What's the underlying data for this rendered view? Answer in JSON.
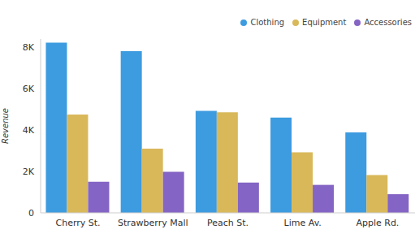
{
  "chart_data": {
    "type": "bar",
    "y_label": "Revenue",
    "categories": [
      "Cherry St.",
      "Strawberry Mall",
      "Peach St.",
      "Lime Av.",
      "Apple Rd."
    ],
    "series": [
      {
        "name": "Clothing",
        "color": "#3d9be0",
        "values": [
          8220,
          7810,
          4930,
          4600,
          3890
        ]
      },
      {
        "name": "Equipment",
        "color": "#d9b85a",
        "values": [
          4750,
          3100,
          4860,
          2920,
          1830
        ]
      },
      {
        "name": "Accessories",
        "color": "#8464c4",
        "values": [
          1500,
          1980,
          1460,
          1350,
          900
        ]
      }
    ],
    "ylim": [
      0,
      8400
    ],
    "yticks": [
      0,
      {
        "value": 2000,
        "label": "2K"
      },
      {
        "value": 4000,
        "label": "4K"
      },
      {
        "value": 6000,
        "label": "6K"
      },
      {
        "value": 8000,
        "label": "8K"
      }
    ],
    "grid": false,
    "legend": "top-right"
  }
}
